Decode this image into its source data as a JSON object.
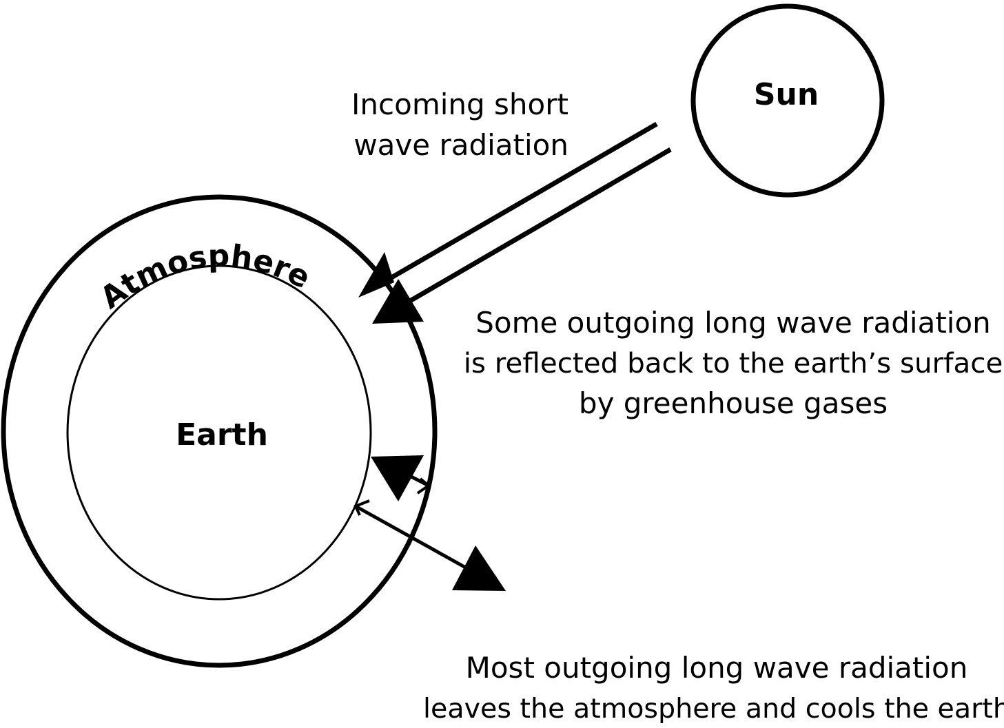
{
  "diagram": {
    "sun_label": "Sun",
    "earth_label": "Earth",
    "atmosphere_label": "Atmosphere",
    "incoming_label": {
      "line1": "Incoming short",
      "line2": "wave radiation"
    },
    "reflected_label": {
      "line1": "Some outgoing long wave radiation",
      "line2": "is reflected back to the earth’s surface",
      "line3": "by greenhouse gases"
    },
    "outgoing_label": {
      "line1": "Most outgoing long wave radiation",
      "line2": "leaves the atmosphere and cools the earth"
    }
  }
}
